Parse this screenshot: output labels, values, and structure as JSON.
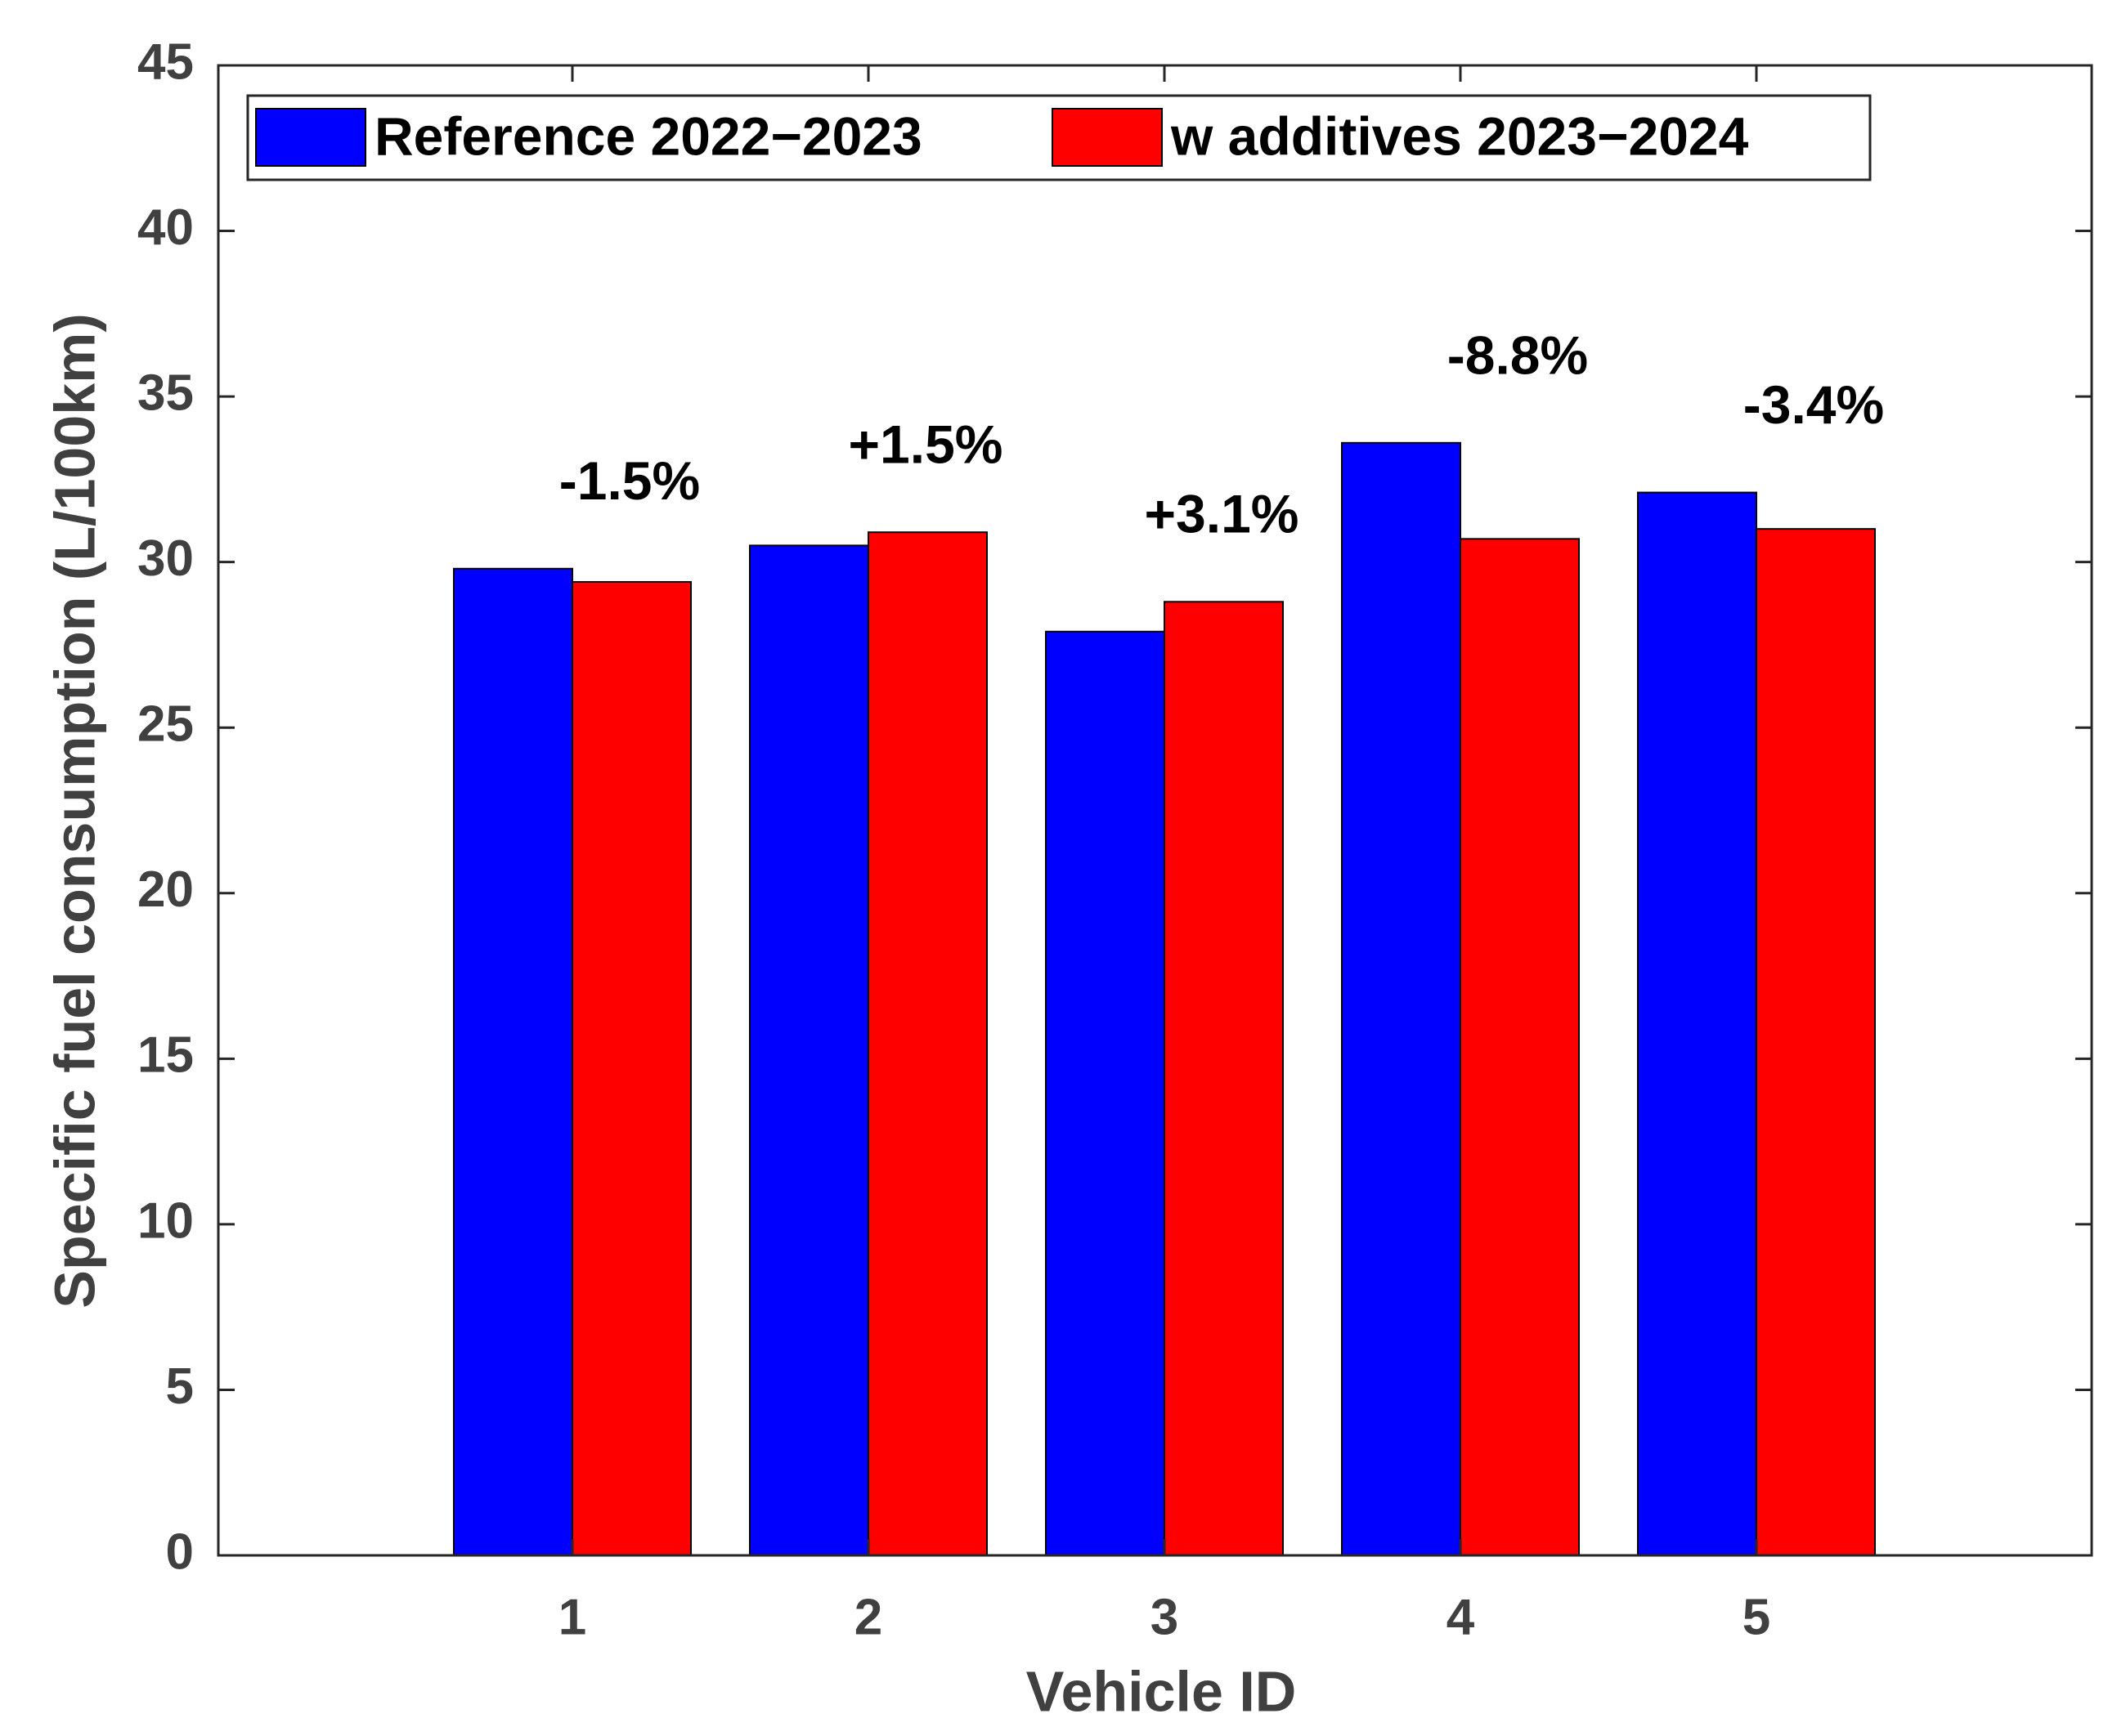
{
  "chart_data": {
    "type": "bar",
    "x_label": "Vehicle ID",
    "y_label": "Specific fuel consumption (L/100km)",
    "categories": [
      "1",
      "2",
      "3",
      "4",
      "5"
    ],
    "series": [
      {
        "name": "Reference 2022−2023",
        "color": "#0000ff",
        "values": [
          29.8,
          30.5,
          27.9,
          33.6,
          32.1
        ]
      },
      {
        "name": "w additives 2023−2024",
        "color": "#ff0000",
        "values": [
          29.4,
          30.9,
          28.8,
          30.7,
          31.0
        ]
      }
    ],
    "annotations": [
      "-1.5%",
      "+1.5%",
      "+3.1%",
      "-8.8%",
      "-3.4%"
    ],
    "ylim": [
      0,
      45
    ],
    "yticks": [
      0,
      5,
      10,
      15,
      20,
      25,
      30,
      35,
      40,
      45
    ],
    "grid": false,
    "legend": "top"
  }
}
